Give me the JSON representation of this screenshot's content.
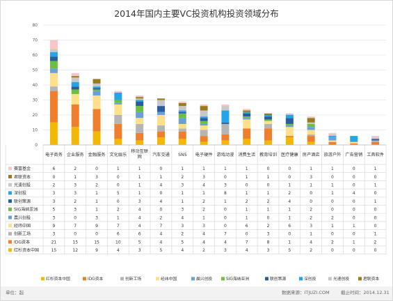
{
  "chart_data": {
    "type": "bar",
    "stacked": true,
    "title": "2014年国内主要VC投资机构投资领域分布",
    "ylim": [
      0,
      80
    ],
    "yticks": [
      0,
      10,
      20,
      30,
      40,
      50,
      60,
      70,
      80
    ],
    "grid": true,
    "categories": [
      "电子商务",
      "企业服务",
      "金融服务",
      "文化娱乐",
      "移动互联网",
      "汽车交通",
      "SNS",
      "电子硬件",
      "游戏动漫",
      "消费生活",
      "教育培训",
      "医疗健康",
      "房产酒店",
      "旅游户外",
      "广告营销",
      "工具软件"
    ],
    "series": [
      {
        "name": "红杉资本中国",
        "color": "#f5b800",
        "values": [
          15,
          12,
          9,
          4,
          3,
          5,
          4,
          2,
          3,
          4,
          3,
          5,
          2,
          0,
          0,
          0
        ]
      },
      {
        "name": "IDG资本",
        "color": "#ef7f2d",
        "values": [
          21,
          15,
          15,
          10,
          5,
          4,
          5,
          4,
          4,
          7,
          8,
          1,
          4,
          2,
          1,
          2
        ]
      },
      {
        "name": "创新工场",
        "color": "#b5b5b5",
        "values": [
          3,
          0,
          0,
          6,
          6,
          4,
          2,
          4,
          7,
          0,
          3,
          0,
          1,
          0,
          0,
          1
        ]
      },
      {
        "name": "经纬中国",
        "color": "#ffe08a",
        "values": [
          9,
          7,
          9,
          7,
          4,
          7,
          3,
          3,
          0,
          6,
          2,
          6,
          3,
          1,
          1,
          0
        ]
      },
      {
        "name": "晨兴创投",
        "color": "#6a9fd8",
        "values": [
          3,
          0,
          3,
          1,
          4,
          2,
          4,
          1,
          0,
          1,
          0,
          1,
          2,
          2,
          0,
          0
        ]
      },
      {
        "name": "SIG海纳亚洲",
        "color": "#6cbf43",
        "values": [
          5,
          3,
          1,
          2,
          4,
          0,
          3,
          2,
          0,
          1,
          1,
          1,
          2,
          0,
          0,
          0
        ]
      },
      {
        "name": "联创策源",
        "color": "#2b5c9e",
        "values": [
          3,
          2,
          1,
          0,
          3,
          4,
          1,
          2,
          1,
          2,
          2,
          4,
          0,
          0,
          0,
          1
        ]
      },
      {
        "name": "深创投",
        "color": "#23a6e8",
        "values": [
          3,
          3,
          1,
          5,
          1,
          0,
          1,
          1,
          8,
          1,
          1,
          2,
          0,
          1,
          4,
          0
        ]
      },
      {
        "name": "光速创投",
        "color": "#c8c8c8",
        "values": [
          2,
          3,
          2,
          0,
          1,
          4,
          3,
          4,
          3,
          0,
          0,
          1,
          1,
          1,
          0,
          1
        ]
      },
      {
        "name": "君联资本",
        "color": "#9a7a1a",
        "values": [
          0,
          1,
          3,
          0,
          1,
          1,
          2,
          3,
          0,
          1,
          1,
          0,
          3,
          0,
          0,
          0
        ]
      },
      {
        "name": "赛富基金",
        "color": "#f7c6c6",
        "values": [
          6,
          2,
          0,
          1,
          1,
          0,
          1,
          1,
          1,
          1,
          0,
          0,
          1,
          1,
          0,
          1
        ]
      }
    ],
    "table_order": [
      "赛富基金",
      "君联资本",
      "光速创投",
      "深创投",
      "联创策源",
      "SIG海纳亚洲",
      "晨兴创投",
      "经纬中国",
      "创新工场",
      "IDG资本",
      "红杉资本中国"
    ],
    "legend_position": "bottom"
  },
  "footer": {
    "unit": "单位：起",
    "source": "数据来源：ITJUZI.COM",
    "date": "截止时间：2014.12.31"
  }
}
